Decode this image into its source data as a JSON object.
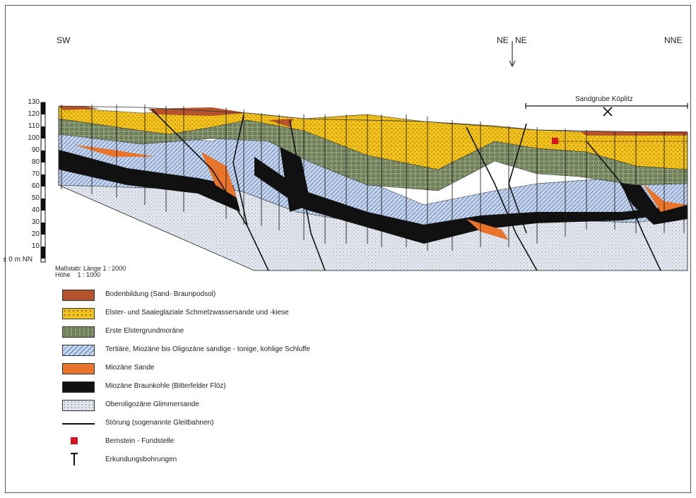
{
  "directions": {
    "left": "SW",
    "middle_left": "NE",
    "middle_right": "NE",
    "right": "NNE"
  },
  "elevation_axis": {
    "ticks": [
      "130",
      "120",
      "110",
      "100",
      "90",
      "80",
      "70",
      "60",
      "50",
      "40",
      "30",
      "20",
      "10"
    ],
    "base_label": "± 0 m NN"
  },
  "sandpit_label": "Sandgrube Köplitz",
  "sandpit_icon": "mining-hammer-pick-icon",
  "scale": {
    "line1": "Maßstab: Länge 1 : 2000",
    "line2": "Höhe    1 : 1000"
  },
  "legend": [
    {
      "label": "Bodenbildung (Sand- Braunpodsol)",
      "style": "soil",
      "color": "#b4532c"
    },
    {
      "label": "Elster- und Saaleglaziale Schmelzwassersande und -kiese",
      "style": "sand",
      "color": "#f2c21a"
    },
    {
      "label": "Erste Elstergrundmoräne",
      "style": "till",
      "color": "#8a9a73"
    },
    {
      "label": "Tertiäre, Miozäne bis Oligozäne sandige - tonige, kohlige Schluffe",
      "style": "tert",
      "color": "#c5d5ec"
    },
    {
      "label": "Miozäne Sande",
      "style": "mios",
      "color": "#e8732a"
    },
    {
      "label": "Miozäne Braunkohle (Bitterfelder Flöz)",
      "style": "coal",
      "color": "#111111"
    },
    {
      "label": "Oberoligozäne Glimmersande",
      "style": "glim",
      "color": "#e1e6ee"
    },
    {
      "label": "Störung (sogenannte Gleitbahnen)",
      "style": "line",
      "color": "#111111"
    },
    {
      "label": "Bernstein - Fundstelle",
      "style": "amber",
      "color": "#d4141e"
    },
    {
      "label": "Erkundungsbohrungen",
      "style": "drill",
      "color": "#111111"
    }
  ]
}
